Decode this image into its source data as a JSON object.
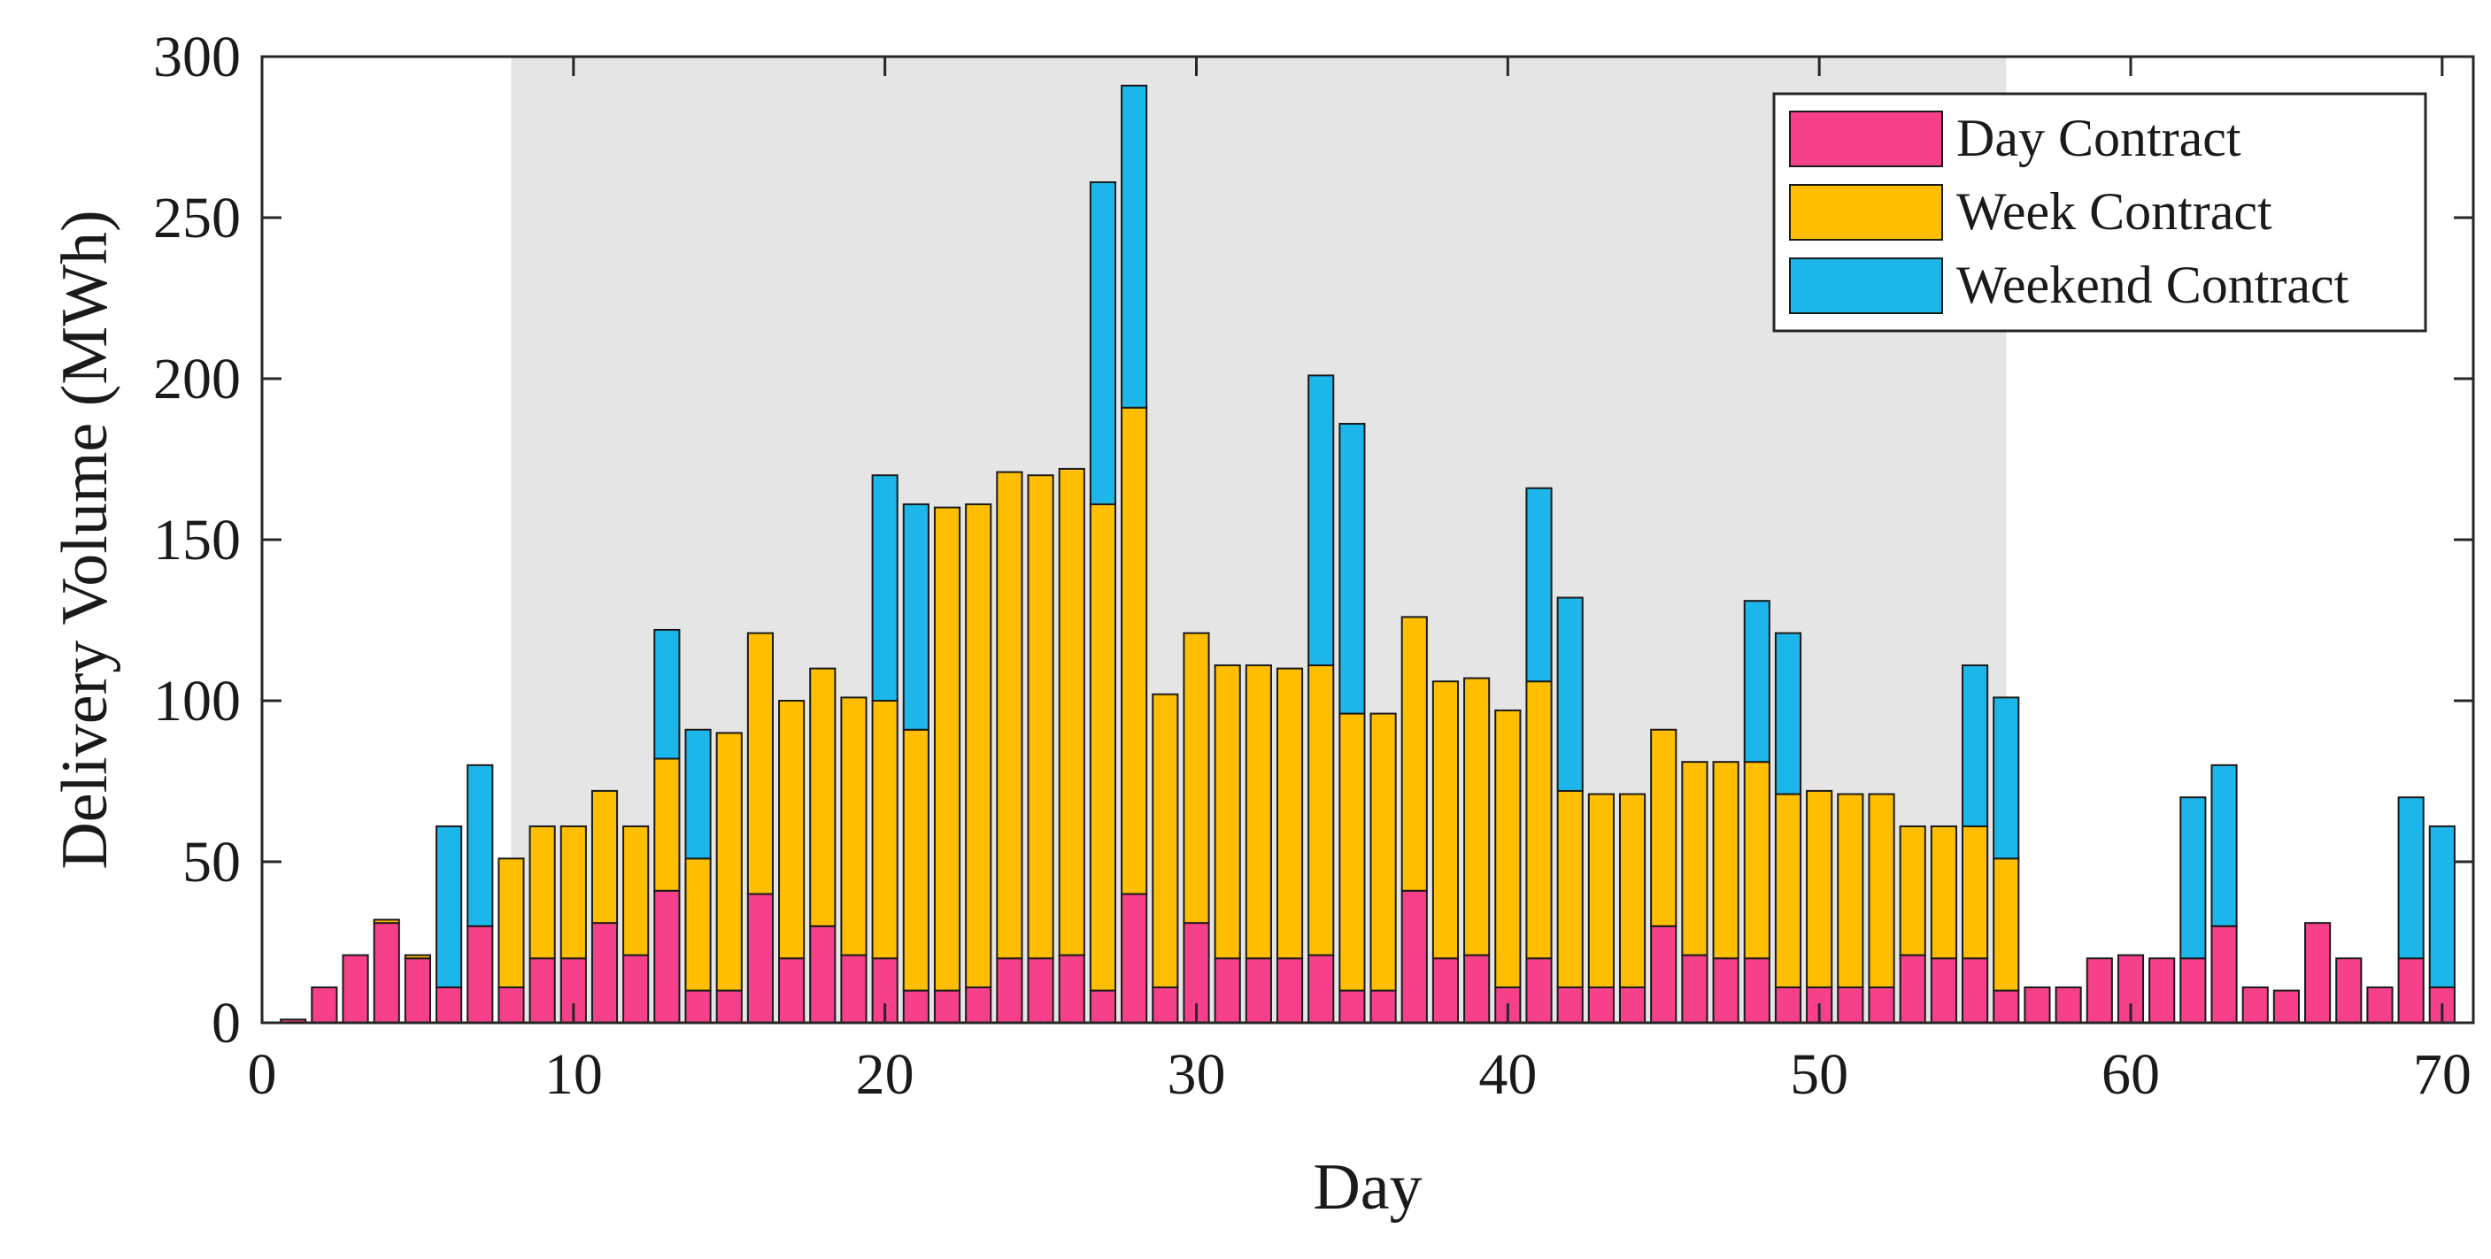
{
  "chart_data": {
    "type": "bar",
    "stacked": true,
    "title": "",
    "xlabel": "Day",
    "ylabel": "Delivery Volume (MWh)",
    "xlim": [
      0,
      71
    ],
    "ylim": [
      0,
      300
    ],
    "xticks": [
      0,
      10,
      20,
      30,
      40,
      50,
      60,
      70
    ],
    "yticks": [
      0,
      50,
      100,
      150,
      200,
      250,
      300
    ],
    "grid": false,
    "legend_position": "top-right",
    "shaded_region": {
      "x_start": 8,
      "x_end": 56,
      "color": "#e5e5e5"
    },
    "categories": [
      1,
      2,
      3,
      4,
      5,
      6,
      7,
      8,
      9,
      10,
      11,
      12,
      13,
      14,
      15,
      16,
      17,
      18,
      19,
      20,
      21,
      22,
      23,
      24,
      25,
      26,
      27,
      28,
      29,
      30,
      31,
      32,
      33,
      34,
      35,
      36,
      37,
      38,
      39,
      40,
      41,
      42,
      43,
      44,
      45,
      46,
      47,
      48,
      49,
      50,
      51,
      52,
      53,
      54,
      55,
      56,
      57,
      58,
      59,
      60,
      61,
      62,
      63,
      64,
      65,
      66,
      67,
      68,
      69,
      70
    ],
    "series": [
      {
        "name": "Day Contract",
        "color": "#f7408a",
        "values": [
          1,
          11,
          21,
          31,
          20,
          11,
          30,
          11,
          20,
          20,
          31,
          21,
          41,
          10,
          10,
          40,
          20,
          30,
          21,
          20,
          10,
          10,
          11,
          20,
          20,
          21,
          10,
          40,
          11,
          31,
          20,
          20,
          20,
          21,
          10,
          10,
          41,
          20,
          21,
          11,
          20,
          11,
          11,
          11,
          30,
          21,
          20,
          20,
          11,
          11,
          11,
          11,
          21,
          20,
          20,
          10,
          11,
          11,
          20,
          21,
          20,
          20,
          30,
          11,
          10,
          31,
          20,
          11,
          20,
          11
        ]
      },
      {
        "name": "Week Contract",
        "color": "#ffbf00",
        "values": [
          0,
          0,
          0,
          1,
          1,
          0,
          0,
          40,
          41,
          41,
          41,
          40,
          41,
          41,
          80,
          81,
          80,
          80,
          80,
          80,
          81,
          150,
          150,
          151,
          150,
          151,
          151,
          151,
          91,
          90,
          91,
          91,
          90,
          90,
          86,
          86,
          85,
          86,
          86,
          86,
          86,
          61,
          60,
          60,
          61,
          60,
          61,
          61,
          60,
          61,
          60,
          60,
          40,
          41,
          41,
          41,
          0,
          0,
          0,
          0,
          0,
          0,
          0,
          0,
          0,
          0,
          0,
          0,
          0,
          0
        ]
      },
      {
        "name": "Weekend Contract",
        "color": "#1cb6ea",
        "values": [
          0,
          0,
          0,
          0,
          0,
          50,
          50,
          0,
          0,
          0,
          0,
          0,
          40,
          40,
          0,
          0,
          0,
          0,
          0,
          70,
          70,
          0,
          0,
          0,
          0,
          0,
          100,
          100,
          0,
          0,
          0,
          0,
          0,
          90,
          90,
          0,
          0,
          0,
          0,
          0,
          60,
          60,
          0,
          0,
          0,
          0,
          0,
          50,
          50,
          0,
          0,
          0,
          0,
          0,
          50,
          50,
          0,
          0,
          0,
          0,
          0,
          50,
          50,
          0,
          0,
          0,
          0,
          0,
          50,
          50
        ]
      }
    ]
  }
}
